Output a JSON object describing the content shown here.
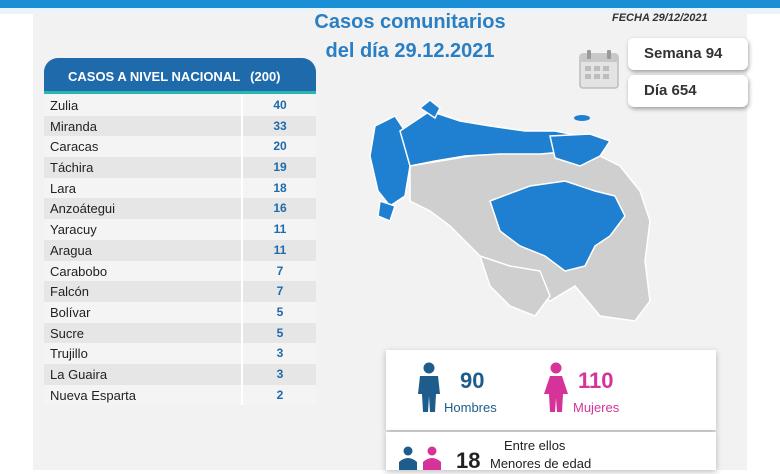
{
  "header": {
    "title_line1": "Casos comunitarios",
    "title_line2": "del día 29.12.2021",
    "fecha": "FECHA 29/12/2021"
  },
  "counters": {
    "semana": "Semana 94",
    "dia": "Día 654"
  },
  "table": {
    "title": "CASOS A NIVEL NACIONAL",
    "total": "(200)",
    "rows": [
      {
        "name": "Zulia",
        "value": "40"
      },
      {
        "name": "Miranda",
        "value": "33"
      },
      {
        "name": "Caracas",
        "value": "20"
      },
      {
        "name": "Táchira",
        "value": "19"
      },
      {
        "name": "Lara",
        "value": "18"
      },
      {
        "name": "Anzoátegui",
        "value": "16"
      },
      {
        "name": "Yaracuy",
        "value": "11"
      },
      {
        "name": "Aragua",
        "value": "11"
      },
      {
        "name": "Carabobo",
        "value": "7"
      },
      {
        "name": "Falcón",
        "value": "7"
      },
      {
        "name": "Bolívar",
        "value": "5"
      },
      {
        "name": "Sucre",
        "value": "5"
      },
      {
        "name": "Trujillo",
        "value": "3"
      },
      {
        "name": "La Guaira",
        "value": "3"
      },
      {
        "name": "Nueva Esparta",
        "value": "2"
      }
    ]
  },
  "gender": {
    "men_count": "90",
    "men_label": "Hombres",
    "women_count": "110",
    "women_label": "Mujeres"
  },
  "minors": {
    "prefix": "Entre ellos",
    "count": "18",
    "label": "Menores de edad"
  },
  "colors": {
    "blue": "#1e6aaa",
    "map_blue": "#1f7fd0",
    "map_gray": "#cfcfcf",
    "pink": "#d6339a",
    "teal": "#29b6b0"
  }
}
